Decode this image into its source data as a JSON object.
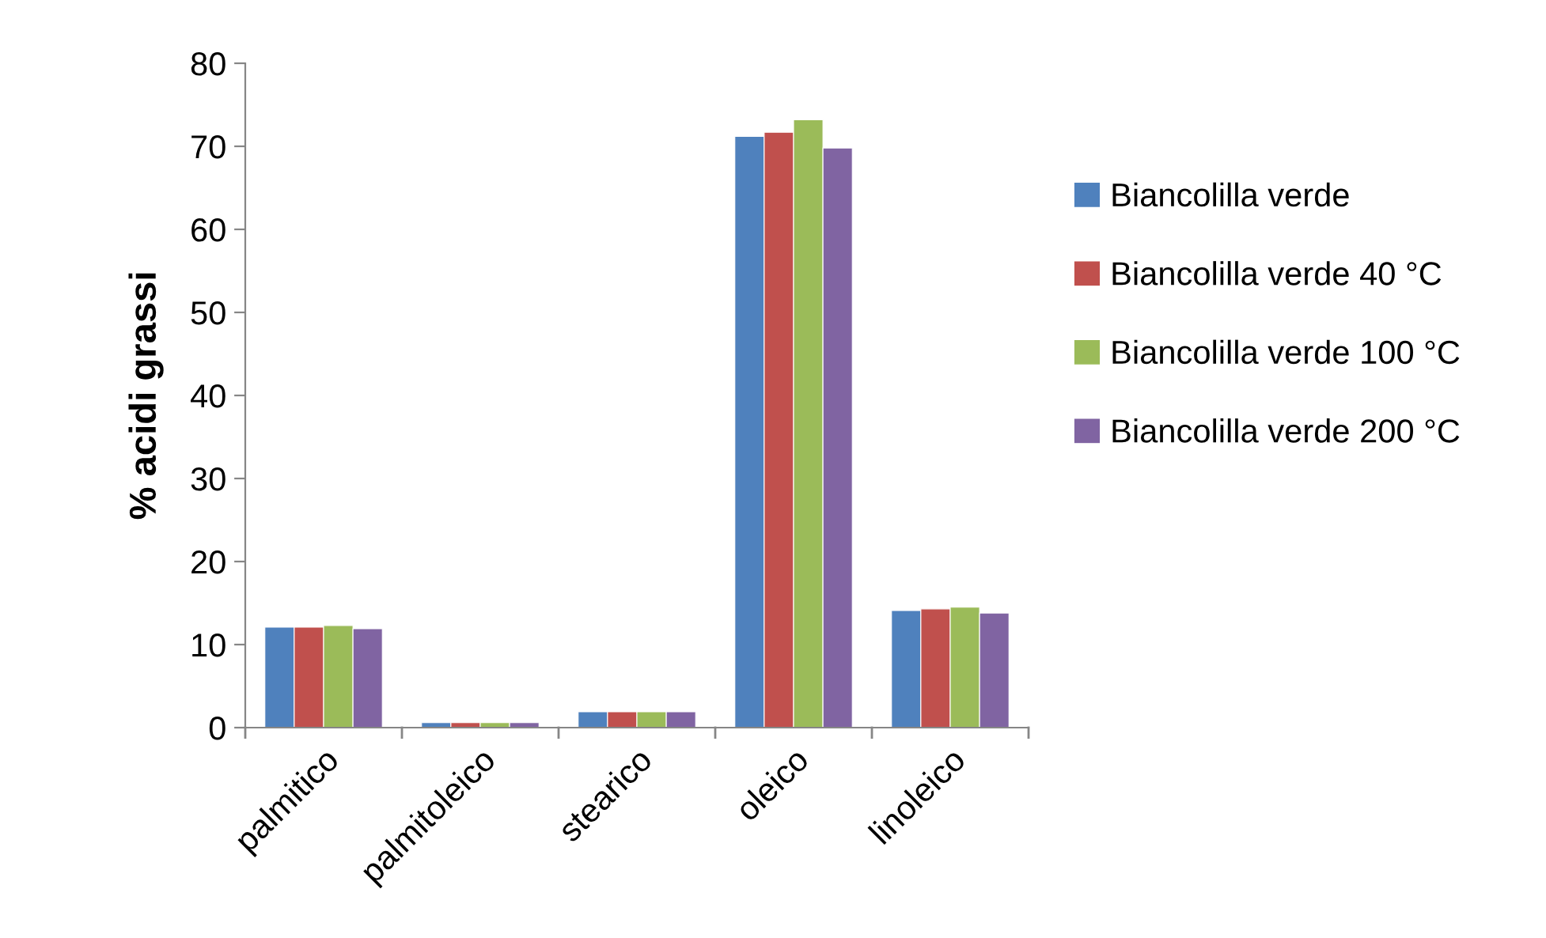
{
  "chart_data": {
    "type": "bar",
    "ylabel": "% acidi grassi",
    "categories": [
      "palmitico",
      "palmitoleico",
      "stearico",
      "oleico",
      "linoleico"
    ],
    "series": [
      {
        "name": "Biancolilla verde",
        "color": "#4f81bd",
        "values": [
          12.1,
          0.6,
          1.9,
          71.2,
          14.1
        ]
      },
      {
        "name": "Biancolilla verde 40 °C",
        "color": "#c0504d",
        "values": [
          12.1,
          0.6,
          1.9,
          71.7,
          14.3
        ]
      },
      {
        "name": "Biancolilla verde 100 °C",
        "color": "#9bbb59",
        "values": [
          12.3,
          0.6,
          1.9,
          73.2,
          14.5
        ]
      },
      {
        "name": "Biancolilla verde 200 °C",
        "color": "#8064a2",
        "values": [
          11.9,
          0.6,
          1.9,
          69.8,
          13.8
        ]
      }
    ],
    "ylim": [
      0,
      80
    ],
    "yticks": [
      0,
      10,
      20,
      30,
      40,
      50,
      60,
      70,
      80
    ],
    "grid": false,
    "legend": "right"
  }
}
